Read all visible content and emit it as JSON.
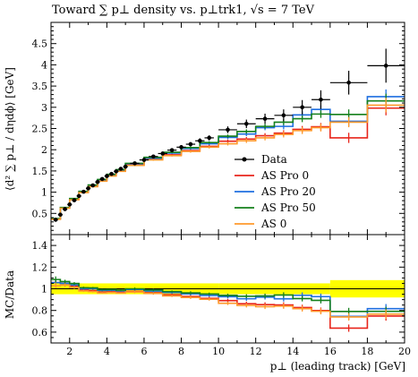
{
  "chart_data": {
    "type": "line",
    "title": "Toward ∑ p⊥ density vs. p⊥trk1, √s = 7 TeV",
    "ylabel": "⟨d² ∑ p⊥ / dηdϕ⟩ [GeV]",
    "ratio_ylabel": "MC/Data",
    "xlabel": "p⊥ (leading track) [GeV]",
    "xlim": [
      1,
      20
    ],
    "ylim": [
      0,
      5
    ],
    "ratio_ylim": [
      0.5,
      1.5
    ],
    "xticks": [
      2,
      4,
      6,
      8,
      10,
      12,
      14,
      16,
      18,
      20
    ],
    "yticks": [
      0.5,
      1,
      1.5,
      2,
      2.5,
      3,
      3.5,
      4,
      4.5
    ],
    "ratio_yticks": [
      0.6,
      0.8,
      1,
      1.2,
      1.4
    ],
    "legend_position": "lower-right",
    "data": {
      "name": "Data",
      "color": "#000000",
      "x": [
        1.25,
        1.5,
        1.75,
        2.0,
        2.25,
        2.5,
        2.75,
        3.0,
        3.25,
        3.5,
        3.75,
        4.0,
        4.25,
        4.5,
        4.75,
        5.0,
        5.5,
        6.0,
        6.5,
        7.0,
        7.5,
        8.0,
        8.5,
        9.0,
        9.5,
        10.5,
        11.5,
        12.5,
        13.5,
        14.5,
        15.5,
        17.0,
        19.0
      ],
      "y": [
        0.35,
        0.47,
        0.6,
        0.71,
        0.81,
        0.91,
        1.01,
        1.09,
        1.16,
        1.24,
        1.31,
        1.38,
        1.43,
        1.49,
        1.55,
        1.6,
        1.68,
        1.76,
        1.84,
        1.91,
        1.99,
        2.06,
        2.13,
        2.21,
        2.28,
        2.47,
        2.61,
        2.73,
        2.81,
        3.0,
        3.18,
        3.58,
        3.98
      ],
      "err": [
        0.01,
        0.01,
        0.01,
        0.01,
        0.01,
        0.02,
        0.02,
        0.02,
        0.02,
        0.02,
        0.02,
        0.02,
        0.02,
        0.03,
        0.03,
        0.03,
        0.03,
        0.03,
        0.04,
        0.04,
        0.04,
        0.05,
        0.05,
        0.06,
        0.06,
        0.08,
        0.1,
        0.12,
        0.14,
        0.17,
        0.22,
        0.28,
        0.4
      ],
      "xerr": [
        0.125,
        0.125,
        0.125,
        0.125,
        0.125,
        0.125,
        0.125,
        0.125,
        0.125,
        0.125,
        0.125,
        0.125,
        0.125,
        0.125,
        0.125,
        0.125,
        0.25,
        0.25,
        0.25,
        0.25,
        0.25,
        0.25,
        0.25,
        0.25,
        0.25,
        0.5,
        0.5,
        0.5,
        0.5,
        0.5,
        0.5,
        1.0,
        1.0
      ]
    },
    "band_ratio": {
      "inner_color": "#ffff00",
      "outer_color": "#ffff00",
      "edges": [
        1,
        10,
        16,
        20
      ],
      "halfwidth": [
        0.05,
        0.05,
        0.08
      ]
    },
    "bin_edges": [
      1.0,
      1.5,
      2.0,
      2.5,
      3.0,
      3.5,
      4.0,
      4.5,
      5.0,
      6.0,
      7.0,
      8.0,
      9.0,
      10.0,
      11.0,
      12.0,
      13.0,
      14.0,
      15.0,
      16.0,
      18.0,
      20.0
    ],
    "series": [
      {
        "name": "AS Pro 0",
        "color": "#e8251b",
        "values": [
          0.37,
          0.63,
          0.83,
          1.0,
          1.14,
          1.27,
          1.39,
          1.5,
          1.64,
          1.77,
          1.88,
          1.98,
          2.08,
          2.2,
          2.25,
          2.33,
          2.39,
          2.48,
          2.54,
          2.28,
          2.98
        ],
        "err": [
          0.01,
          0.01,
          0.01,
          0.01,
          0.01,
          0.01,
          0.01,
          0.01,
          0.02,
          0.02,
          0.02,
          0.03,
          0.03,
          0.04,
          0.05,
          0.06,
          0.07,
          0.08,
          0.09,
          0.12,
          0.17
        ]
      },
      {
        "name": "AS Pro 20",
        "color": "#1f6fe0",
        "values": [
          0.37,
          0.63,
          0.84,
          1.01,
          1.16,
          1.29,
          1.41,
          1.52,
          1.67,
          1.8,
          1.92,
          2.03,
          2.14,
          2.29,
          2.37,
          2.52,
          2.55,
          2.82,
          2.95,
          2.67,
          3.25
        ],
        "err": [
          0.01,
          0.01,
          0.01,
          0.01,
          0.01,
          0.01,
          0.01,
          0.01,
          0.02,
          0.02,
          0.02,
          0.03,
          0.03,
          0.04,
          0.05,
          0.06,
          0.07,
          0.08,
          0.09,
          0.12,
          0.17
        ]
      },
      {
        "name": "AS Pro 50",
        "color": "#15801c",
        "values": [
          0.38,
          0.64,
          0.85,
          1.02,
          1.17,
          1.3,
          1.42,
          1.53,
          1.68,
          1.82,
          1.94,
          2.05,
          2.17,
          2.32,
          2.43,
          2.55,
          2.65,
          2.73,
          2.84,
          2.83,
          3.15
        ],
        "err": [
          0.01,
          0.01,
          0.01,
          0.01,
          0.01,
          0.01,
          0.01,
          0.01,
          0.02,
          0.02,
          0.02,
          0.03,
          0.03,
          0.04,
          0.05,
          0.06,
          0.07,
          0.08,
          0.09,
          0.12,
          0.17
        ]
      },
      {
        "name": "AS 0",
        "color": "#ff9a2c",
        "values": [
          0.36,
          0.62,
          0.82,
          0.99,
          1.13,
          1.26,
          1.38,
          1.49,
          1.63,
          1.76,
          1.86,
          1.96,
          2.06,
          2.14,
          2.21,
          2.28,
          2.36,
          2.45,
          2.52,
          2.65,
          3.05
        ],
        "err": [
          0.01,
          0.01,
          0.01,
          0.01,
          0.01,
          0.01,
          0.01,
          0.01,
          0.02,
          0.02,
          0.02,
          0.03,
          0.03,
          0.04,
          0.05,
          0.06,
          0.07,
          0.08,
          0.09,
          0.12,
          0.17
        ]
      }
    ]
  }
}
